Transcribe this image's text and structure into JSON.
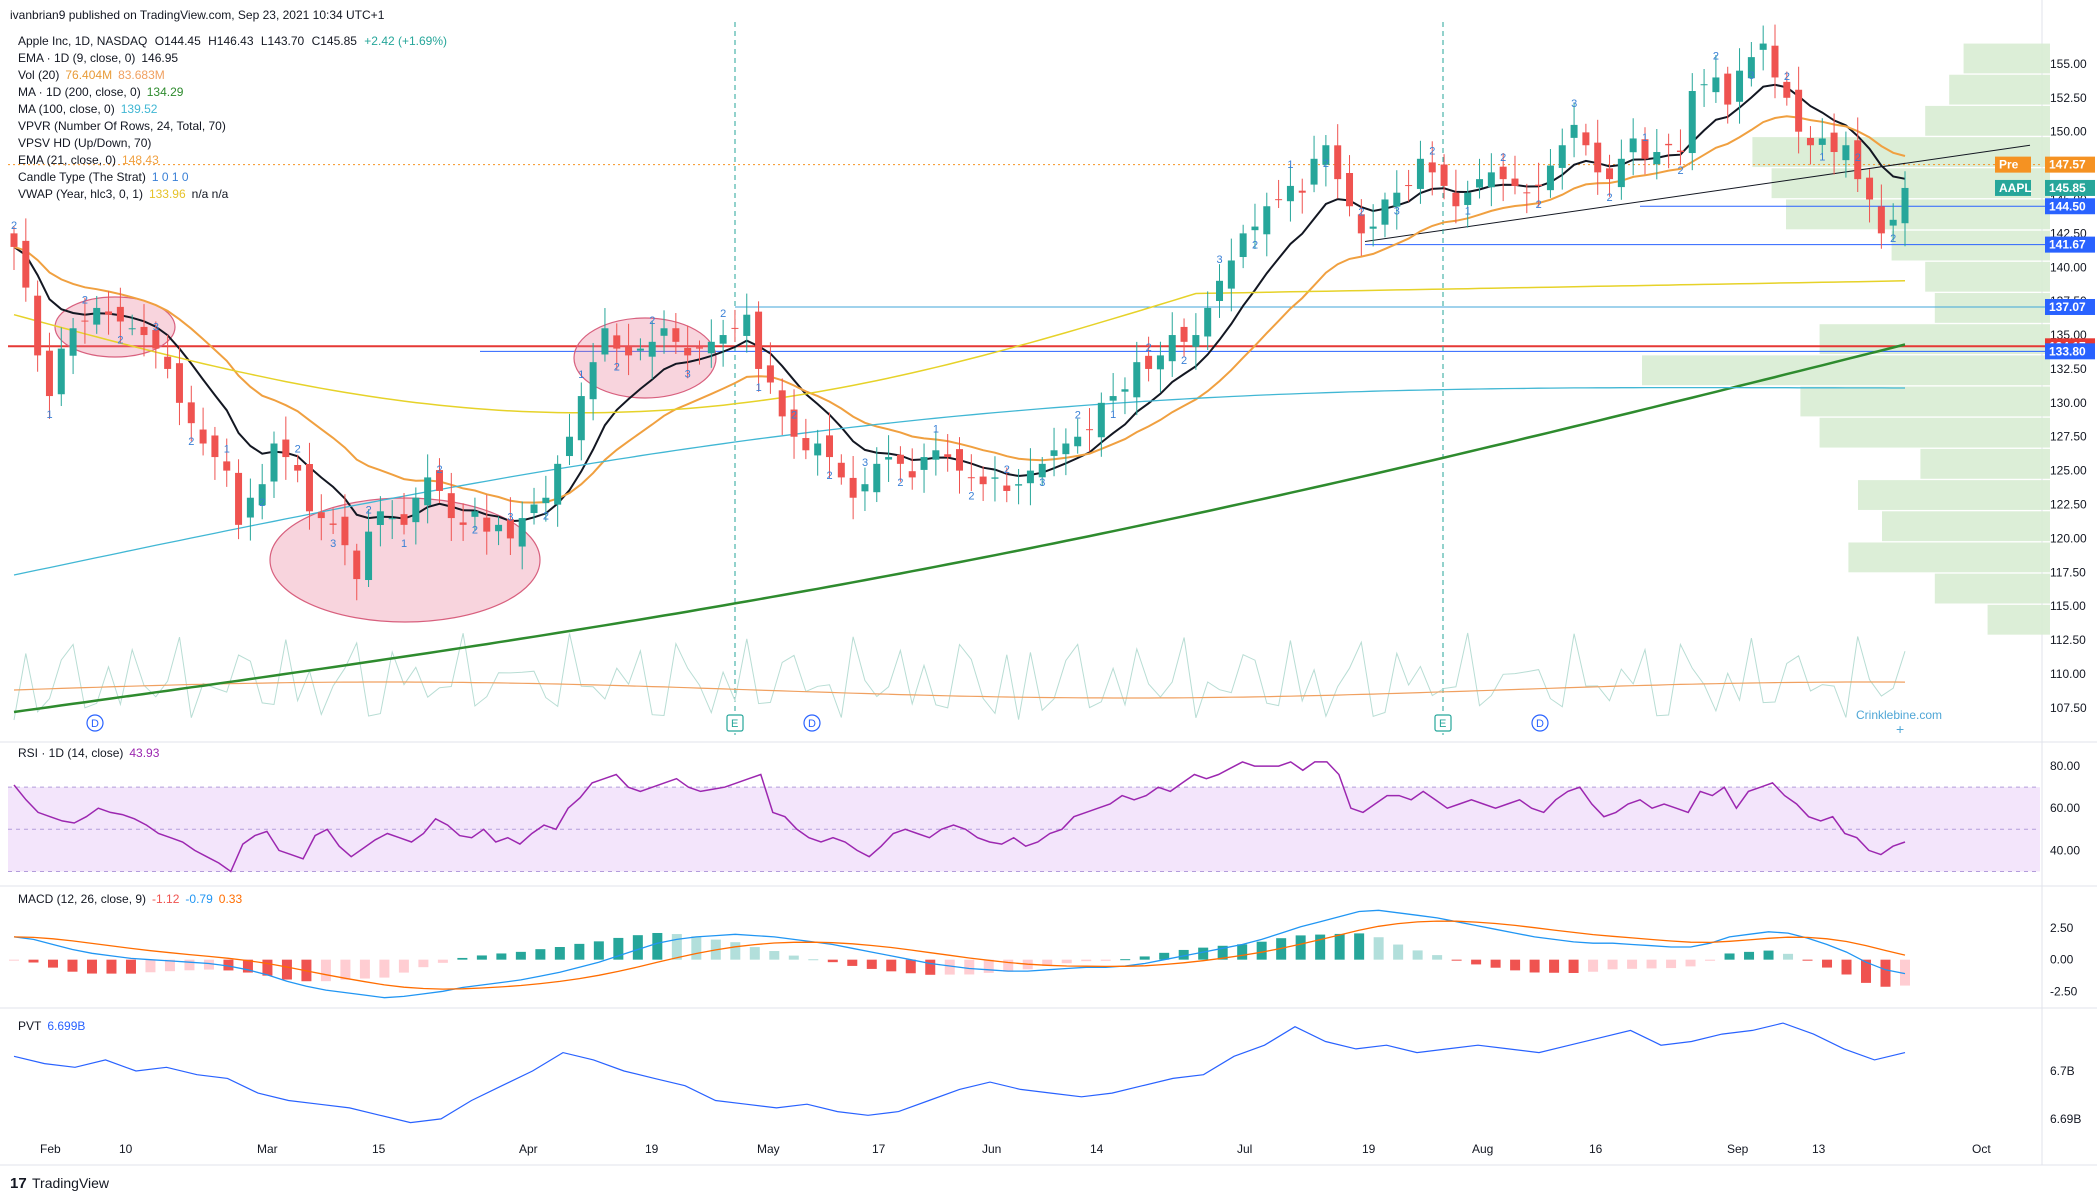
{
  "header": {
    "published": "ivanbrian9 published on TradingView.com, Sep 23, 2021 10:34 UTC+1"
  },
  "legend": {
    "main": {
      "name": "Apple Inc, 1D, NASDAQ",
      "o": "O144.45",
      "h": "H146.43",
      "l": "L143.70",
      "c": "C145.85",
      "chg": "+2.42 (+1.69%)"
    },
    "lines": [
      {
        "label": "EMA · 1D (9, close, 0)",
        "value": "146.95",
        "color": "#131722"
      },
      {
        "label": "Vol (20)",
        "value": "76.404M",
        "value2": "83.683M",
        "color": "#e89b37",
        "color2": "#f0a060"
      },
      {
        "label": "MA · 1D (200, close, 0)",
        "value": "134.29",
        "color": "#2e8b2e"
      },
      {
        "label": "MA (100, close, 0)",
        "value": "139.52",
        "color": "#41b7d4"
      },
      {
        "label": "VPVR (Number Of Rows, 24, Total, 70)",
        "value": "",
        "color": "#131722"
      },
      {
        "label": "VPSV HD (Up/Down, 70)",
        "value": "",
        "color": "#131722"
      },
      {
        "label": "EMA (21, close, 0)",
        "value": "148.43",
        "color": "#f0a040"
      },
      {
        "label": "Candle Type (The Strat)",
        "value": "1  0  1  0",
        "color": "#3a80d6"
      },
      {
        "label": "VWAP (Year, hlc3, 0, 1)",
        "value": "133.96",
        "value2": "n/a  n/a",
        "color": "#e6c229",
        "color2": "#131722"
      }
    ]
  },
  "price_axis": {
    "ticks": [
      "155.00",
      "152.50",
      "150.00",
      "147.50",
      "145.00",
      "142.50",
      "140.00",
      "137.50",
      "135.00",
      "132.50",
      "130.00",
      "127.50",
      "125.00",
      "122.50",
      "120.00",
      "117.50",
      "115.00",
      "112.50",
      "110.00",
      "107.50"
    ],
    "badges": [
      {
        "text": "Pre",
        "text2": "147.57",
        "value": 147.57,
        "color": "#f59222"
      },
      {
        "text": "AAPL",
        "text2": "145.85",
        "value": 145.85,
        "color": "#26a69a"
      },
      {
        "text": "",
        "text2": "144.50",
        "value": 144.5,
        "color": "#2962ff"
      },
      {
        "text": "",
        "text2": "141.67",
        "value": 141.67,
        "color": "#2962ff"
      },
      {
        "text": "",
        "text2": "137.07",
        "value": 137.07,
        "color": "#2962ff"
      },
      {
        "text": "",
        "text2": "134.17",
        "value": 134.17,
        "color": "#e53935"
      },
      {
        "text": "",
        "text2": "133.80",
        "value": 133.8,
        "color": "#2962ff"
      }
    ]
  },
  "rsi": {
    "label": "RSI · 1D (14, close)",
    "value": "43.93",
    "ticks": [
      "80.00",
      "60.00",
      "40.00"
    ]
  },
  "macd": {
    "label": "MACD (12, 26, close, 9)",
    "v1": "-1.12",
    "v2": "-0.79",
    "v3": "0.33",
    "ticks": [
      "2.50",
      "0.00",
      "-2.50"
    ]
  },
  "pvt": {
    "label": "PVT",
    "value": "6.699B",
    "ticks": [
      "6.7B",
      "6.69B"
    ]
  },
  "time_axis": [
    "Feb",
    "10",
    "Mar",
    "15",
    "Apr",
    "19",
    "May",
    "17",
    "Jun",
    "14",
    "Jul",
    "19",
    "Aug",
    "16",
    "Sep",
    "13",
    "Oct"
  ],
  "watermark": "Crinklebine.com",
  "brand": "TradingView",
  "event_markers": [
    "D",
    "E",
    "D",
    "E",
    "D"
  ],
  "colors": {
    "up": "#26a69a",
    "down": "#ef5350",
    "bg": "#ffffff",
    "rsi_fill": "#f3e5fb",
    "vp_fill": "#d8ecd3"
  },
  "chart_data": {
    "type": "candlestick",
    "symbol": "AAPL",
    "timeframe": "1D",
    "title": "Apple Inc, 1D, NASDAQ",
    "ylim": [
      105.5,
      157.5
    ],
    "ohlc_last": {
      "open": 144.45,
      "high": 146.43,
      "low": 143.7,
      "close": 145.85
    },
    "close_series_approx": [
      141.5,
      138.5,
      133.5,
      130.5,
      134.0,
      135.5,
      136.0,
      137.0,
      136.5,
      136.0,
      135.5,
      135.0,
      134.0,
      132.5,
      130.0,
      128.5,
      127.0,
      126.0,
      125.0,
      121.0,
      123.0,
      124.0,
      127.0,
      126.0,
      125.0,
      122.0,
      121.5,
      121.0,
      119.5,
      117.0,
      120.5,
      122.0,
      121.5,
      121.0,
      123.0,
      124.5,
      123.5,
      121.5,
      121.0,
      122.0,
      120.5,
      121.0,
      120.0,
      121.5,
      122.5,
      123.0,
      125.5,
      127.5,
      130.5,
      133.0,
      135.5,
      134.0,
      133.5,
      134.0,
      134.5,
      135.5,
      134.5,
      133.5,
      134.0,
      134.5,
      135.0,
      135.5,
      136.5,
      132.5,
      131.5,
      129.0,
      127.5,
      126.5,
      127.0,
      126.0,
      124.5,
      123.0,
      124.0,
      125.5,
      126.0,
      125.5,
      124.5,
      126.0,
      126.5,
      126.0,
      125.0,
      124.5,
      124.0,
      124.5,
      123.5,
      124.0,
      125.0,
      125.5,
      126.5,
      127.0,
      127.5,
      128.0,
      130.0,
      130.5,
      131.0,
      133.0,
      132.5,
      133.5,
      135.0,
      134.5,
      135.0,
      137.0,
      139.0,
      140.5,
      142.5,
      143.0,
      144.5,
      145.0,
      146.0,
      145.5,
      148.0,
      149.0,
      146.5,
      144.5,
      142.5,
      143.0,
      145.0,
      145.5,
      146.0,
      148.0,
      147.0,
      146.0,
      144.5,
      145.5,
      146.5,
      147.0,
      146.5,
      146.0,
      145.5,
      146.0,
      147.5,
      149.0,
      150.5,
      149.0,
      147.0,
      146.5,
      148.0,
      149.5,
      148.0,
      148.5,
      149.0,
      148.5,
      153.0,
      153.5,
      154.0,
      152.0,
      154.5,
      155.5,
      156.5,
      154.0,
      152.5,
      150.0,
      149.0,
      149.5,
      148.5,
      149.0,
      146.5,
      145.0,
      142.5,
      143.5,
      145.85
    ],
    "indicators": {
      "EMA9": 146.95,
      "EMA21": 148.43,
      "MA100": 139.52,
      "MA200": 134.29,
      "VWAP": 133.96,
      "Vol20": [
        "76.404M",
        "83.683M"
      ],
      "RSI14": 43.93,
      "MACD": {
        "macd": -1.12,
        "signal": -0.79,
        "hist": 0.33
      },
      "PVT": "6.699B"
    },
    "horizontal_levels": [
      147.57,
      145.85,
      144.5,
      141.67,
      137.07,
      134.17,
      133.8
    ],
    "rsi_series_approx": [
      71,
      64,
      58,
      56,
      54,
      53,
      56,
      60,
      58,
      57,
      55,
      52,
      48,
      46,
      44,
      40,
      37,
      34,
      30,
      43,
      47,
      49,
      40,
      38,
      36,
      47,
      50,
      42,
      37,
      41,
      45,
      48,
      46,
      44,
      48,
      55,
      52,
      47,
      46,
      50,
      44,
      46,
      43,
      48,
      52,
      50,
      60,
      65,
      72,
      74,
      76,
      70,
      68,
      70,
      72,
      74,
      70,
      68,
      69,
      70,
      72,
      74,
      76,
      58,
      56,
      50,
      46,
      44,
      46,
      44,
      40,
      37,
      42,
      48,
      50,
      48,
      46,
      50,
      52,
      50,
      46,
      44,
      43,
      46,
      42,
      44,
      48,
      50,
      56,
      58,
      60,
      62,
      66,
      64,
      66,
      70,
      68,
      72,
      76,
      74,
      76,
      79,
      82,
      80,
      80,
      80,
      82,
      78,
      82,
      82,
      76,
      60,
      58,
      62,
      66,
      66,
      64,
      68,
      64,
      60,
      62,
      64,
      62,
      60,
      62,
      64,
      60,
      58,
      64,
      68,
      70,
      62,
      56,
      58,
      62,
      64,
      60,
      62,
      60,
      58,
      68,
      66,
      70,
      60,
      68,
      70,
      72,
      66,
      62,
      56,
      54,
      56,
      48,
      46,
      40,
      38,
      42,
      44
    ],
    "macd_series_approx": [
      1.8,
      1.6,
      1.2,
      0.8,
      0.5,
      0.3,
      0.1,
      0.0,
      -0.1,
      -0.2,
      -0.3,
      -0.5,
      -0.8,
      -1.2,
      -1.7,
      -2.1,
      -2.4,
      -2.6,
      -2.8,
      -3.0,
      -2.9,
      -2.7,
      -2.5,
      -2.2,
      -2.0,
      -1.8,
      -1.6,
      -1.3,
      -1.0,
      -0.6,
      -0.2,
      0.3,
      0.8,
      1.3,
      1.6,
      1.8,
      1.9,
      2.0,
      1.9,
      1.8,
      1.6,
      1.4,
      1.2,
      0.9,
      0.6,
      0.3,
      0.0,
      -0.3,
      -0.5,
      -0.7,
      -0.8,
      -0.9,
      -0.9,
      -0.8,
      -0.7,
      -0.6,
      -0.6,
      -0.5,
      -0.3,
      0.0,
      0.3,
      0.6,
      0.9,
      1.2,
      1.6,
      2.1,
      2.6,
      3.0,
      3.4,
      3.8,
      3.9,
      3.7,
      3.5,
      3.3,
      3.0,
      2.7,
      2.4,
      2.1,
      1.8,
      1.6,
      1.4,
      1.3,
      1.3,
      1.2,
      1.1,
      1.0,
      1.0,
      1.3,
      1.8,
      2.0,
      2.2,
      2.1,
      1.7,
      1.2,
      0.6,
      -0.2,
      -0.8,
      -1.1
    ],
    "pvt_series_approx": [
      6.702,
      6.701,
      6.7005,
      6.7015,
      6.7,
      6.7005,
      6.6995,
      6.699,
      6.697,
      6.696,
      6.6955,
      6.695,
      6.694,
      6.693,
      6.6935,
      6.696,
      6.698,
      6.7,
      6.7025,
      6.7015,
      6.7,
      6.699,
      6.698,
      6.696,
      6.6955,
      6.695,
      6.6955,
      6.6945,
      6.694,
      6.6945,
      6.696,
      6.6975,
      6.6985,
      6.6975,
      6.697,
      6.6965,
      6.697,
      6.698,
      6.699,
      6.6995,
      6.702,
      6.7035,
      6.706,
      6.704,
      6.703,
      6.7035,
      6.7025,
      6.703,
      6.7035,
      6.703,
      6.7025,
      6.7035,
      6.7045,
      6.7055,
      6.7035,
      6.704,
      6.705,
      6.7055,
      6.7065,
      6.705,
      6.703,
      6.7015,
      6.7025
    ]
  }
}
